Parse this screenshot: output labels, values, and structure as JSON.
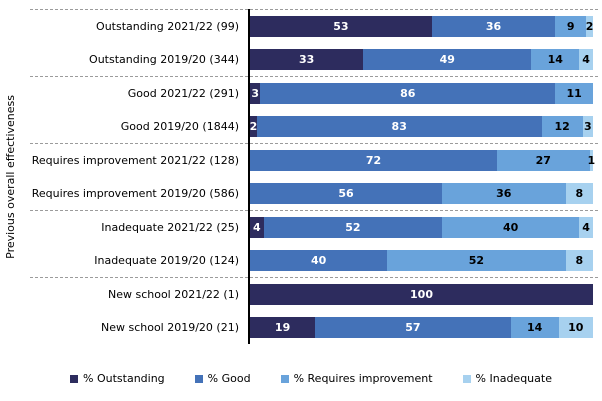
{
  "y_axis_title": "Previous overall effectiveness",
  "colors": {
    "outstanding": "#2d2c5e",
    "good": "#4472b8",
    "requires_improvement": "#69a3db",
    "inadequate": "#a7d1ef",
    "axis_line": "#000000",
    "separator_dashed": "#9b9b9b"
  },
  "chart_data": {
    "type": "bar",
    "orientation": "horizontal-stacked",
    "xlim": [
      0,
      100
    ],
    "ylabel": "Previous overall effectiveness",
    "grid": "dashed horizontal separators between category groups",
    "legend_position": "bottom",
    "categories": [
      "Outstanding 2021/22 (99)",
      "Outstanding 2019/20 (344)",
      "Good 2021/22 (291)",
      "Good 2019/20 (1844)",
      "Requires improvement 2021/22 (128)",
      "Requires improvement 2019/20 (586)",
      "Inadequate 2021/22 (25)",
      "Inadequate 2019/20 (124)",
      "New school 2021/22 (1)",
      "New school 2019/20 (21)"
    ],
    "series": [
      {
        "name": "% Outstanding",
        "color": "#2d2c5e",
        "label_color": "#ffffff",
        "values": [
          53,
          33,
          3,
          2,
          0,
          0,
          4,
          0,
          100,
          19
        ]
      },
      {
        "name": "% Good",
        "color": "#4472b8",
        "label_color": "#ffffff",
        "values": [
          36,
          49,
          86,
          83,
          72,
          56,
          52,
          40,
          0,
          57
        ]
      },
      {
        "name": "% Requires improvement",
        "color": "#69a3db",
        "label_color": "#000000",
        "values": [
          9,
          14,
          11,
          12,
          27,
          36,
          40,
          52,
          0,
          14
        ]
      },
      {
        "name": "% Inadequate",
        "color": "#a7d1ef",
        "label_color": "#000000",
        "values": [
          2,
          4,
          0,
          3,
          1,
          8,
          4,
          8,
          0,
          10
        ]
      }
    ]
  }
}
